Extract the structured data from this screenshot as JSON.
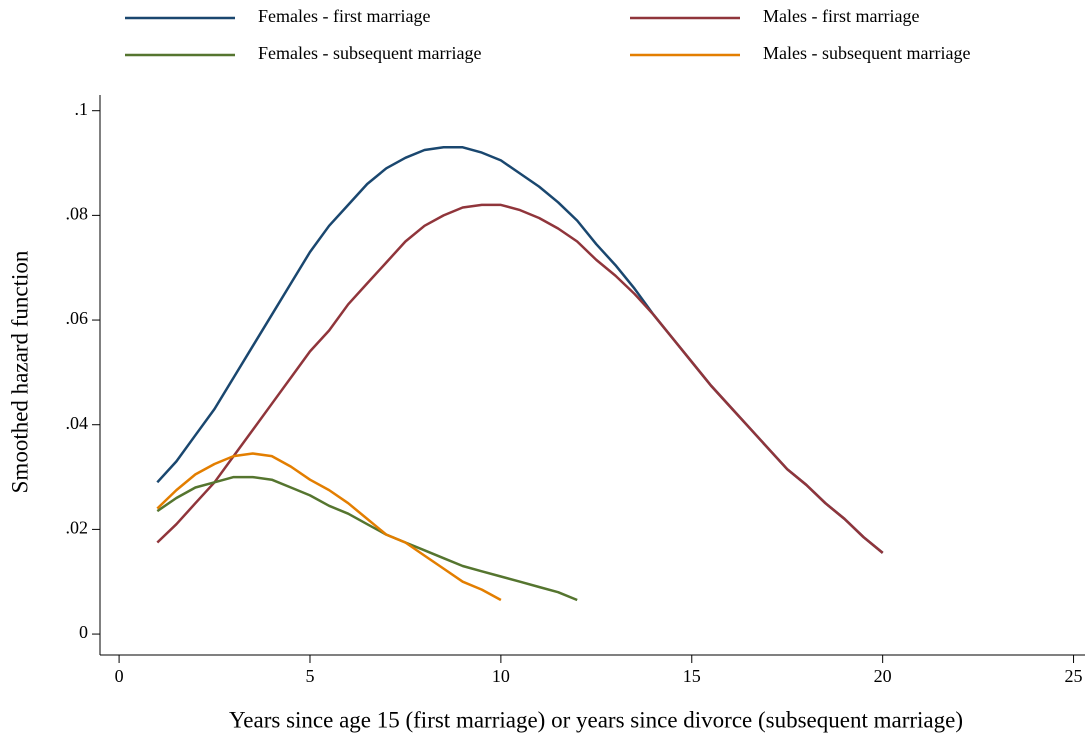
{
  "chart_data": {
    "type": "line",
    "x_label": "Years since age 15 (first marriage) or years since divorce (subsequent marriage)",
    "y_label": "Smoothed hazard function",
    "x": [
      1,
      1.5,
      2,
      2.5,
      3,
      3.5,
      4,
      4.5,
      5,
      5.5,
      6,
      6.5,
      7,
      7.5,
      8,
      8.5,
      9,
      9.5,
      10,
      10.5,
      11,
      11.5,
      12,
      12.5,
      13,
      13.5,
      14,
      14.5,
      15,
      15.5,
      16,
      16.5,
      17,
      17.5,
      18,
      18.5,
      19,
      19.5,
      20
    ],
    "series": [
      {
        "name": "Females - first marriage",
        "color": "#1a476f",
        "values": [
          0.029,
          0.033,
          0.038,
          0.043,
          0.049,
          0.055,
          0.061,
          0.067,
          0.073,
          0.078,
          0.082,
          0.086,
          0.089,
          0.091,
          0.0925,
          0.093,
          0.093,
          0.092,
          0.0905,
          0.088,
          0.0855,
          0.0825,
          0.079,
          0.0745,
          0.0705,
          0.066,
          0.061,
          0.0565,
          0.052,
          0.0475,
          0.0435,
          0.0395,
          0.0355,
          0.0315,
          0.0285,
          0.025,
          0.022,
          0.0185,
          0.0155
        ]
      },
      {
        "name": "Males - first marriage",
        "color": "#90353b",
        "values": [
          0.0175,
          0.021,
          0.025,
          0.029,
          0.034,
          0.039,
          0.044,
          0.049,
          0.054,
          0.058,
          0.063,
          0.067,
          0.071,
          0.075,
          0.078,
          0.08,
          0.0815,
          0.082,
          0.082,
          0.081,
          0.0795,
          0.0775,
          0.075,
          0.0715,
          0.0685,
          0.065,
          0.061,
          0.0565,
          0.052,
          0.0475,
          0.0435,
          0.0395,
          0.0355,
          0.0315,
          0.0285,
          0.025,
          0.022,
          0.0185,
          0.0155
        ]
      },
      {
        "name": "Females - subsequent marriage",
        "color": "#55752f",
        "values": [
          0.0235,
          0.026,
          0.028,
          0.029,
          0.03,
          0.03,
          0.0295,
          0.028,
          0.0265,
          0.0245,
          0.023,
          0.021,
          0.019,
          0.0175,
          0.016,
          0.0145,
          0.013,
          0.012,
          0.011,
          0.01,
          0.009,
          0.008,
          0.0065,
          null,
          null,
          null,
          null,
          null,
          null,
          null,
          null,
          null,
          null,
          null,
          null,
          null,
          null,
          null,
          null
        ]
      },
      {
        "name": "Males - subsequent marriage",
        "color": "#e37e00",
        "values": [
          0.024,
          0.0275,
          0.0305,
          0.0325,
          0.034,
          0.0345,
          0.034,
          0.032,
          0.0295,
          0.0275,
          0.025,
          0.022,
          0.019,
          0.0175,
          0.015,
          0.0125,
          0.01,
          0.0085,
          0.0065,
          null,
          null,
          null,
          null,
          null,
          null,
          null,
          null,
          null,
          null,
          null,
          null,
          null,
          null,
          null,
          null,
          null,
          null,
          null,
          null
        ]
      }
    ],
    "xlim": [
      -0.5,
      25.3
    ],
    "xticks": [
      0,
      5,
      10,
      15,
      20,
      25
    ],
    "ylim": [
      -0.004,
      0.103
    ],
    "yticks": [
      0,
      {
        "value": 0.02,
        "label": ".02"
      },
      {
        "value": 0.04,
        "label": ".04"
      },
      {
        "value": 0.06,
        "label": ".06"
      },
      {
        "value": 0.08,
        "label": ".08"
      },
      {
        "value": 0.1,
        "label": ".1"
      }
    ],
    "legend_position": "top"
  }
}
